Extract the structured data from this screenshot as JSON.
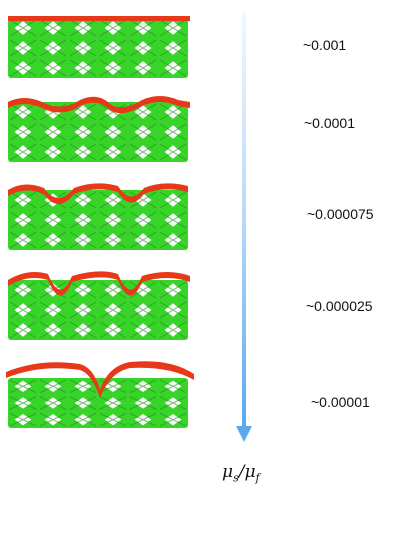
{
  "colors": {
    "lattice": "#39d42a",
    "lattice_dark": "#1f8f18",
    "film": "#e8381a",
    "arrow": "#6fb4ee"
  },
  "rows": [
    {
      "ratio_label": "~0.001",
      "film_shape": "flat"
    },
    {
      "ratio_label": "~0.0001",
      "film_shape": "slight-sag"
    },
    {
      "ratio_label": "~0.000075",
      "film_shape": "moderate-sag"
    },
    {
      "ratio_label": "~0.000025",
      "film_shape": "deep-sag"
    },
    {
      "ratio_label": "~0.00001",
      "film_shape": "single-deep-sag"
    }
  ],
  "axis": {
    "symbol_main": "μ",
    "sub_1": "s",
    "sep": "/",
    "sub_2": "f",
    "direction": "down"
  }
}
